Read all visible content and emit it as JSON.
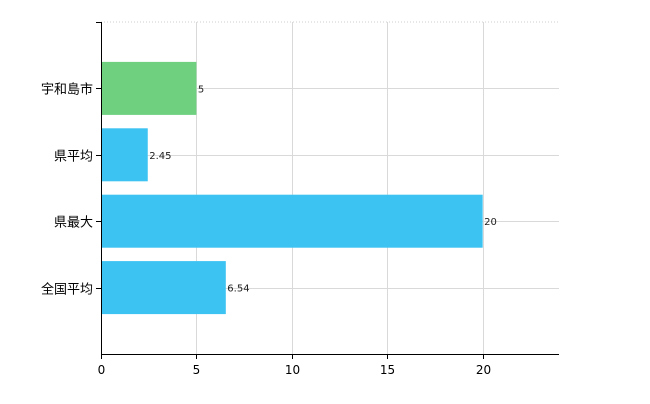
{
  "chart_data": {
    "type": "bar",
    "orientation": "horizontal",
    "categories": [
      "宇和島市",
      "県平均",
      "県最大",
      "全国平均"
    ],
    "values": [
      5,
      2.45,
      20,
      6.54
    ],
    "value_labels": [
      "5",
      "2.45",
      "20",
      "6.54"
    ],
    "bar_colors": [
      "#6fd080",
      "#3cc3f2",
      "#3cc3f2",
      "#3cc3f2"
    ],
    "title": "",
    "xlabel": "",
    "ylabel": "",
    "xlim": [
      0,
      24
    ],
    "xticks": [
      0,
      5,
      10,
      15,
      20
    ],
    "xtick_labels": [
      "0",
      "5",
      "10",
      "15",
      "20"
    ],
    "grid": true,
    "legend": "none"
  }
}
